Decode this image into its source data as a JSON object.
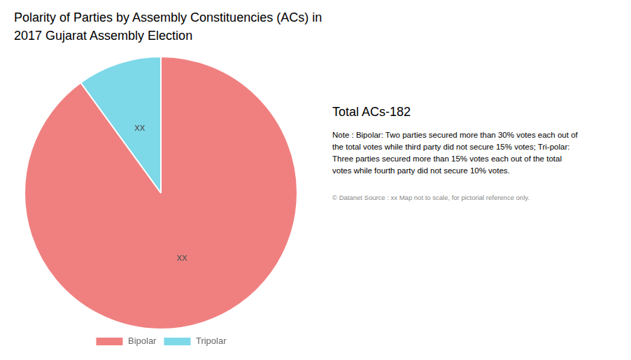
{
  "chart_data": {
    "type": "pie",
    "title": [
      "Polarity of Parties by Assembly Constituencies (ACs) in",
      "2017 Gujarat Assembly Election"
    ],
    "categories": [
      "Bipolar",
      "Tripolar"
    ],
    "values": [
      90,
      10
    ],
    "colors": [
      "#F08080",
      "#7DD8E8"
    ],
    "value_labels": [
      "xx",
      "xx"
    ],
    "legend": "bottom",
    "annotations": [
      "Total ACs-182",
      "Note : Bipolar: Two parties secured more than 30% votes each out of\nthe total votes while third party did not secure 15% votes; Tri-polar:\nThree parties secured more than 15% votes each out of the total\nvotes while fourth party did not secure 10% votes.",
      "© Datanet  Source : xx   Map not to scale, for pictorial reference only."
    ]
  }
}
